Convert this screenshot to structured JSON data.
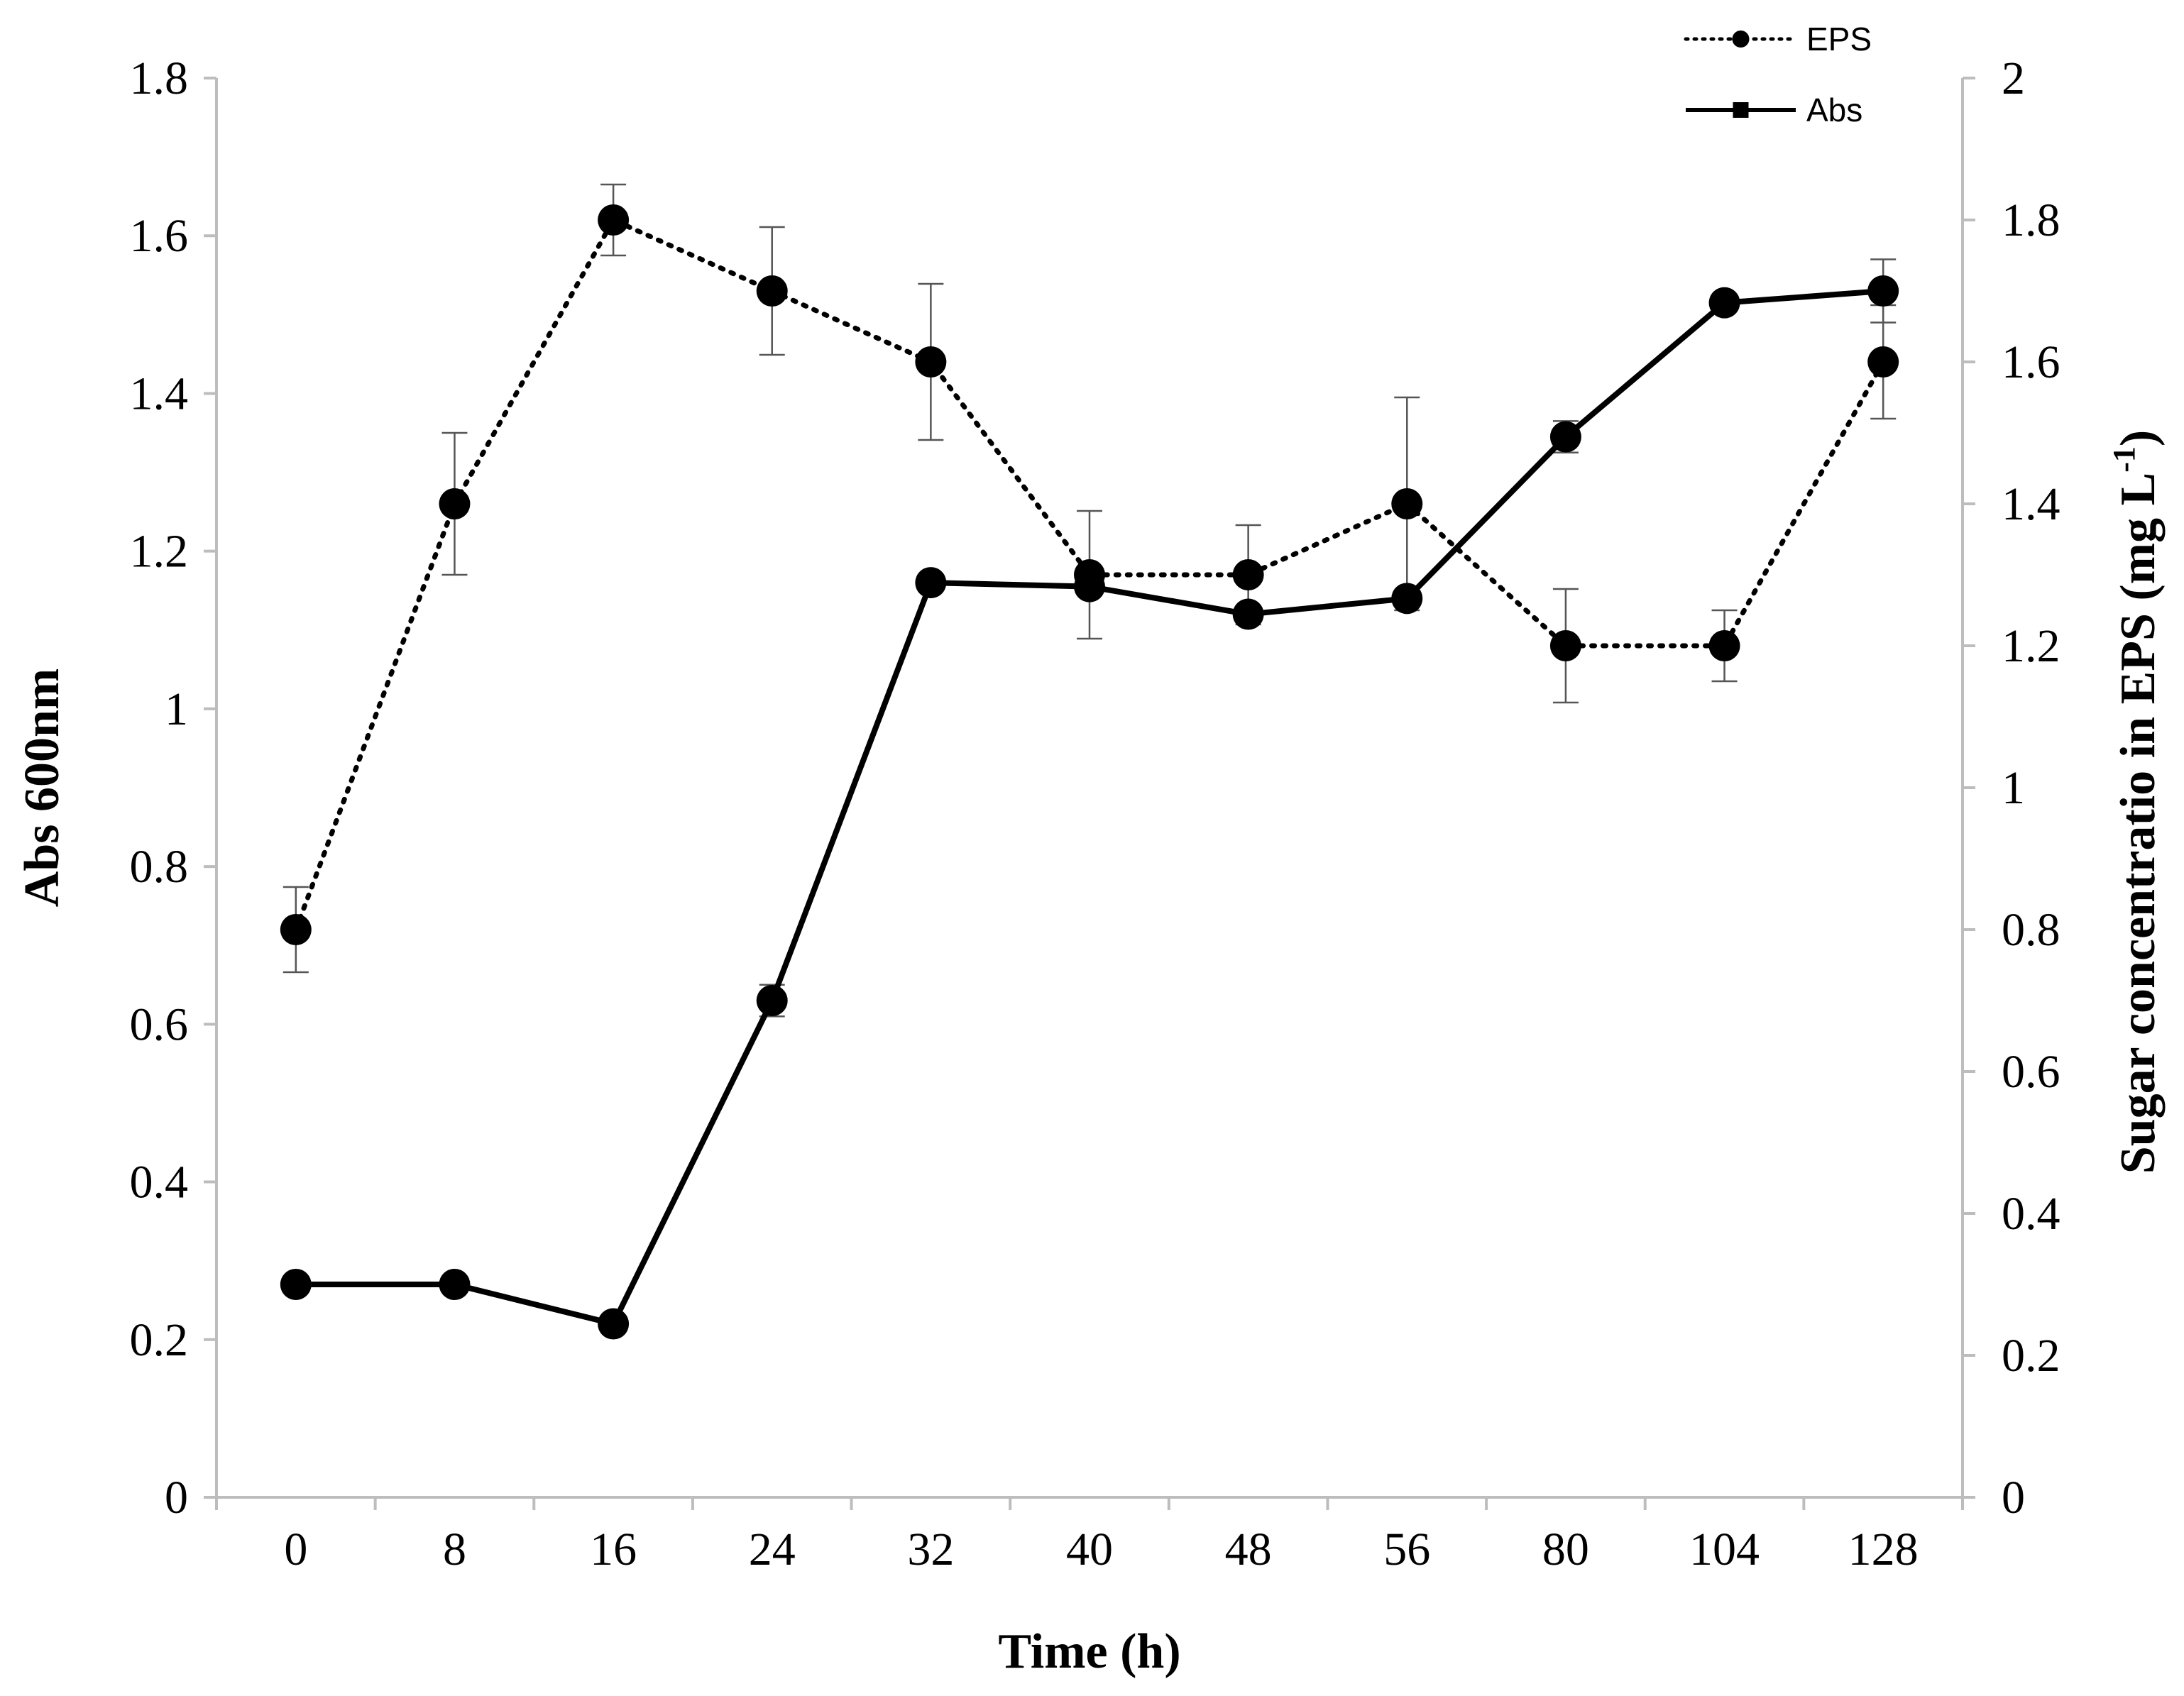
{
  "chart_data": {
    "type": "line",
    "categories": [
      "0",
      "8",
      "16",
      "24",
      "32",
      "40",
      "48",
      "56",
      "80",
      "104",
      "128"
    ],
    "xlabel": "Time (h)",
    "ylabel_left": "Abs 600nm",
    "ylabel_right_main": "Sugar concentratio in EPS (mg L",
    "ylabel_right_sup": "-1",
    "ylabel_right_end": ")",
    "ylim_left": [
      0,
      1.8
    ],
    "yticks_left": [
      "0",
      "0.2",
      "0.4",
      "0.6",
      "0.8",
      "1",
      "1.2",
      "1.4",
      "1.6",
      "1.8"
    ],
    "ylim_right": [
      0,
      2
    ],
    "yticks_right": [
      "0",
      "0.2",
      "0.4",
      "0.6",
      "0.8",
      "1",
      "1.2",
      "1.4",
      "1.6",
      "1.8",
      "2"
    ],
    "grid": false,
    "legend_position": "top-right",
    "series": [
      {
        "name": "EPS",
        "axis": "right",
        "style": "dotted",
        "marker": "circle",
        "values": [
          0.8,
          1.4,
          1.8,
          1.7,
          1.6,
          1.3,
          1.3,
          1.4,
          1.2,
          1.2,
          1.6
        ],
        "errors": [
          0.06,
          0.1,
          0.05,
          0.09,
          0.11,
          0.09,
          0.07,
          0.15,
          0.08,
          0.05,
          0.08
        ]
      },
      {
        "name": "Abs",
        "axis": "left",
        "style": "solid",
        "marker": "circle",
        "values": [
          0.27,
          0.27,
          0.22,
          0.63,
          1.16,
          1.155,
          1.12,
          1.14,
          1.345,
          1.515,
          1.53
        ],
        "errors": [
          0.005,
          0.005,
          0.005,
          0.02,
          0.01,
          0.01,
          0.01,
          0.01,
          0.02,
          0.01,
          0.04
        ]
      }
    ]
  }
}
